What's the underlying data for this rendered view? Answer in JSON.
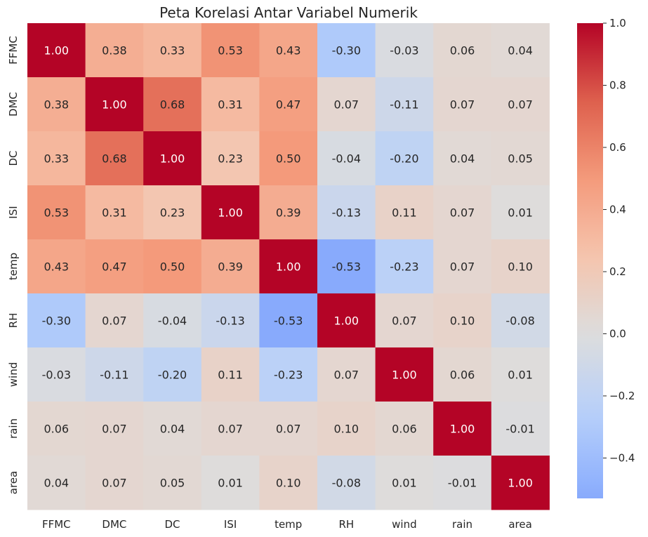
{
  "chart_data": {
    "type": "heatmap",
    "title": "Peta Korelasi Antar Variabel Numerik",
    "xlabel": "",
    "ylabel": "",
    "x_labels": [
      "FFMC",
      "DMC",
      "DC",
      "ISI",
      "temp",
      "RH",
      "wind",
      "rain",
      "area"
    ],
    "y_labels": [
      "FFMC",
      "DMC",
      "DC",
      "ISI",
      "temp",
      "RH",
      "wind",
      "rain",
      "area"
    ],
    "values": [
      [
        1.0,
        0.38,
        0.33,
        0.53,
        0.43,
        -0.3,
        -0.03,
        0.06,
        0.04
      ],
      [
        0.38,
        1.0,
        0.68,
        0.31,
        0.47,
        0.07,
        -0.11,
        0.07,
        0.07
      ],
      [
        0.33,
        0.68,
        1.0,
        0.23,
        0.5,
        -0.04,
        -0.2,
        0.04,
        0.05
      ],
      [
        0.53,
        0.31,
        0.23,
        1.0,
        0.39,
        -0.13,
        0.11,
        0.07,
        0.01
      ],
      [
        0.43,
        0.47,
        0.5,
        0.39,
        1.0,
        -0.53,
        -0.23,
        0.07,
        0.1
      ],
      [
        -0.3,
        0.07,
        -0.04,
        -0.13,
        -0.53,
        1.0,
        0.07,
        0.1,
        -0.08
      ],
      [
        -0.03,
        -0.11,
        -0.2,
        0.11,
        -0.23,
        0.07,
        1.0,
        0.06,
        0.01
      ],
      [
        0.06,
        0.07,
        0.04,
        0.07,
        0.07,
        0.1,
        0.06,
        1.0,
        -0.01
      ],
      [
        0.04,
        0.07,
        0.05,
        0.01,
        0.1,
        -0.08,
        0.01,
        -0.01,
        1.0
      ]
    ],
    "colormap": "coolwarm",
    "center": 0.0,
    "vmin": -0.53,
    "vmax": 1.0,
    "colorbar_ticks": [
      "1.0",
      "0.8",
      "0.6",
      "0.4",
      "0.2",
      "0.0",
      "−0.2",
      "−0.4"
    ],
    "colorbar_tick_values": [
      1.0,
      0.8,
      0.6,
      0.4,
      0.2,
      0.0,
      -0.2,
      -0.4
    ],
    "annotations": true,
    "annotation_format": "0.00",
    "grid": false,
    "legend": "colorbar-right"
  }
}
